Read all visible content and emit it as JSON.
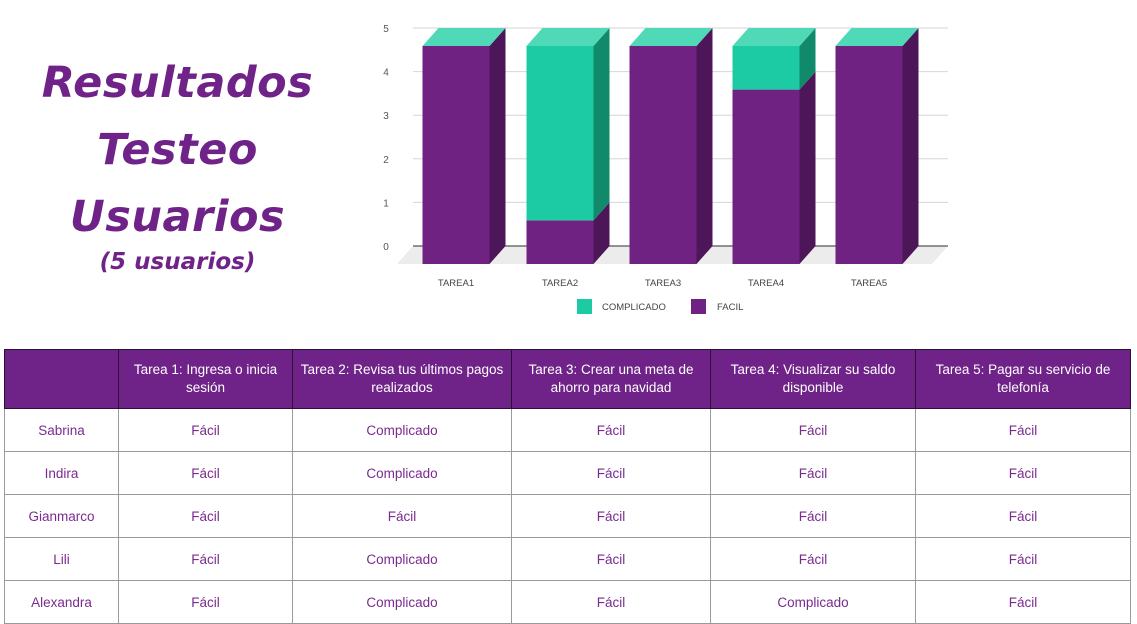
{
  "heading": {
    "line1": "Resultados",
    "line2": "Testeo",
    "line3": "Usuarios",
    "subtitle": "(5 usuarios)"
  },
  "colors": {
    "facil": "#702283",
    "facil_side": "#4c1659",
    "complicado": "#1ccba4",
    "complicado_side": "#108a6a",
    "complicado_top": "#4fd9b7",
    "header_bg": "#6f2287",
    "accent_text": "#7a2b8f"
  },
  "chart_data": {
    "type": "bar",
    "stacked": true,
    "categories": [
      "TAREA1",
      "TAREA2",
      "TAREA3",
      "TAREA4",
      "TAREA5"
    ],
    "series": [
      {
        "name": "FACIL",
        "values": [
          5,
          1,
          5,
          4,
          5
        ]
      },
      {
        "name": "COMPLICADO",
        "values": [
          0,
          4,
          0,
          1,
          0
        ]
      }
    ],
    "ylim": [
      0,
      5
    ],
    "yticks": [
      0,
      1,
      2,
      3,
      4,
      5
    ],
    "legend": [
      "COMPLICADO",
      "FACIL"
    ],
    "legend_position": "bottom",
    "grid": true,
    "title": "",
    "xlabel": "",
    "ylabel": ""
  },
  "table": {
    "headers": [
      "",
      "Tarea 1: Ingresa o inicia sesión",
      "Tarea 2: Revisa tus últimos pagos realizados",
      "Tarea 3: Crear una meta de ahorro para navidad",
      "Tarea 4: Visualizar su saldo disponible",
      "Tarea 5: Pagar su servicio de telefonía"
    ],
    "rows": [
      [
        "Sabrina",
        "Fácil",
        "Complicado",
        "Fácil",
        "Fácil",
        "Fácil"
      ],
      [
        "Indira",
        "Fácil",
        "Complicado",
        "Fácil",
        "Fácil",
        "Fácil"
      ],
      [
        "Gianmarco",
        "Fácil",
        "Fácil",
        "Fácil",
        "Fácil",
        "Fácil"
      ],
      [
        "Lili",
        "Fácil",
        "Complicado",
        "Fácil",
        "Fácil",
        "Fácil"
      ],
      [
        "Alexandra",
        "Fácil",
        "Complicado",
        "Fácil",
        "Complicado",
        "Fácil"
      ]
    ]
  }
}
